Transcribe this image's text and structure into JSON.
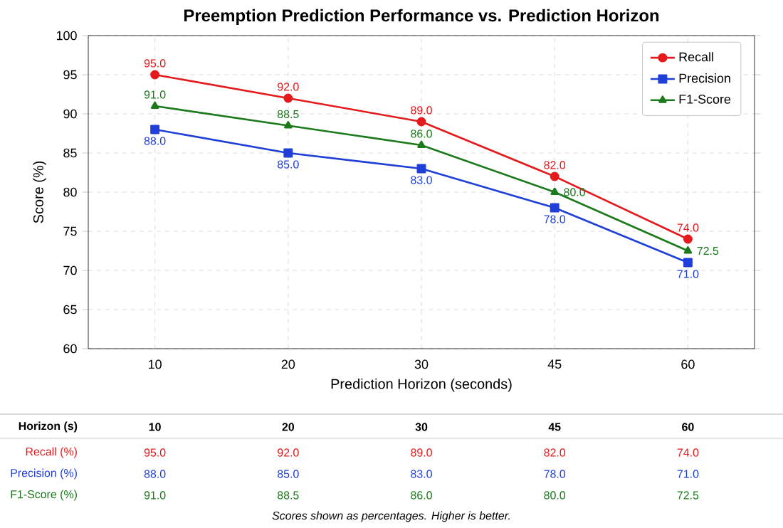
{
  "chart_data": {
    "type": "line",
    "title": "Preemption Prediction Performance vs. Prediction Horizon",
    "xlabel": "Prediction Horizon (seconds)",
    "ylabel": "Score (%)",
    "categories": [
      "10",
      "20",
      "30",
      "45",
      "60"
    ],
    "series": [
      {
        "name": "Recall",
        "color": "#e41a1c",
        "marker": "circle",
        "values": [
          95.0,
          92.0,
          89.0,
          82.0,
          74.0
        ],
        "value_labels": [
          "95.0",
          "92.0",
          "89.0",
          "82.0",
          "74.0"
        ]
      },
      {
        "name": "Precision",
        "color": "#1f3fd8",
        "marker": "square",
        "values": [
          88.0,
          85.0,
          83.0,
          78.0,
          71.0
        ],
        "value_labels": [
          "88.0",
          "85.0",
          "83.0",
          "78.0",
          "71.0"
        ]
      },
      {
        "name": "F1-Score",
        "color": "#1b7a1b",
        "marker": "triangle",
        "values": [
          91.0,
          88.5,
          86.0,
          80.0,
          72.5
        ],
        "value_labels": [
          "91.0",
          "88.5",
          "86.0",
          "80.0",
          "72.5"
        ]
      }
    ],
    "ylim": [
      60,
      100
    ],
    "yticks": [
      60,
      65,
      70,
      75,
      80,
      85,
      90,
      95,
      100
    ],
    "grid": true,
    "legend": "top right",
    "line_style": "solid",
    "annotations": [
      "Horizon (s)",
      "Recall (%)",
      "Precision (%)",
      "F1-Score (%)",
      "Scores shown as percentages. Higher is better."
    ]
  }
}
